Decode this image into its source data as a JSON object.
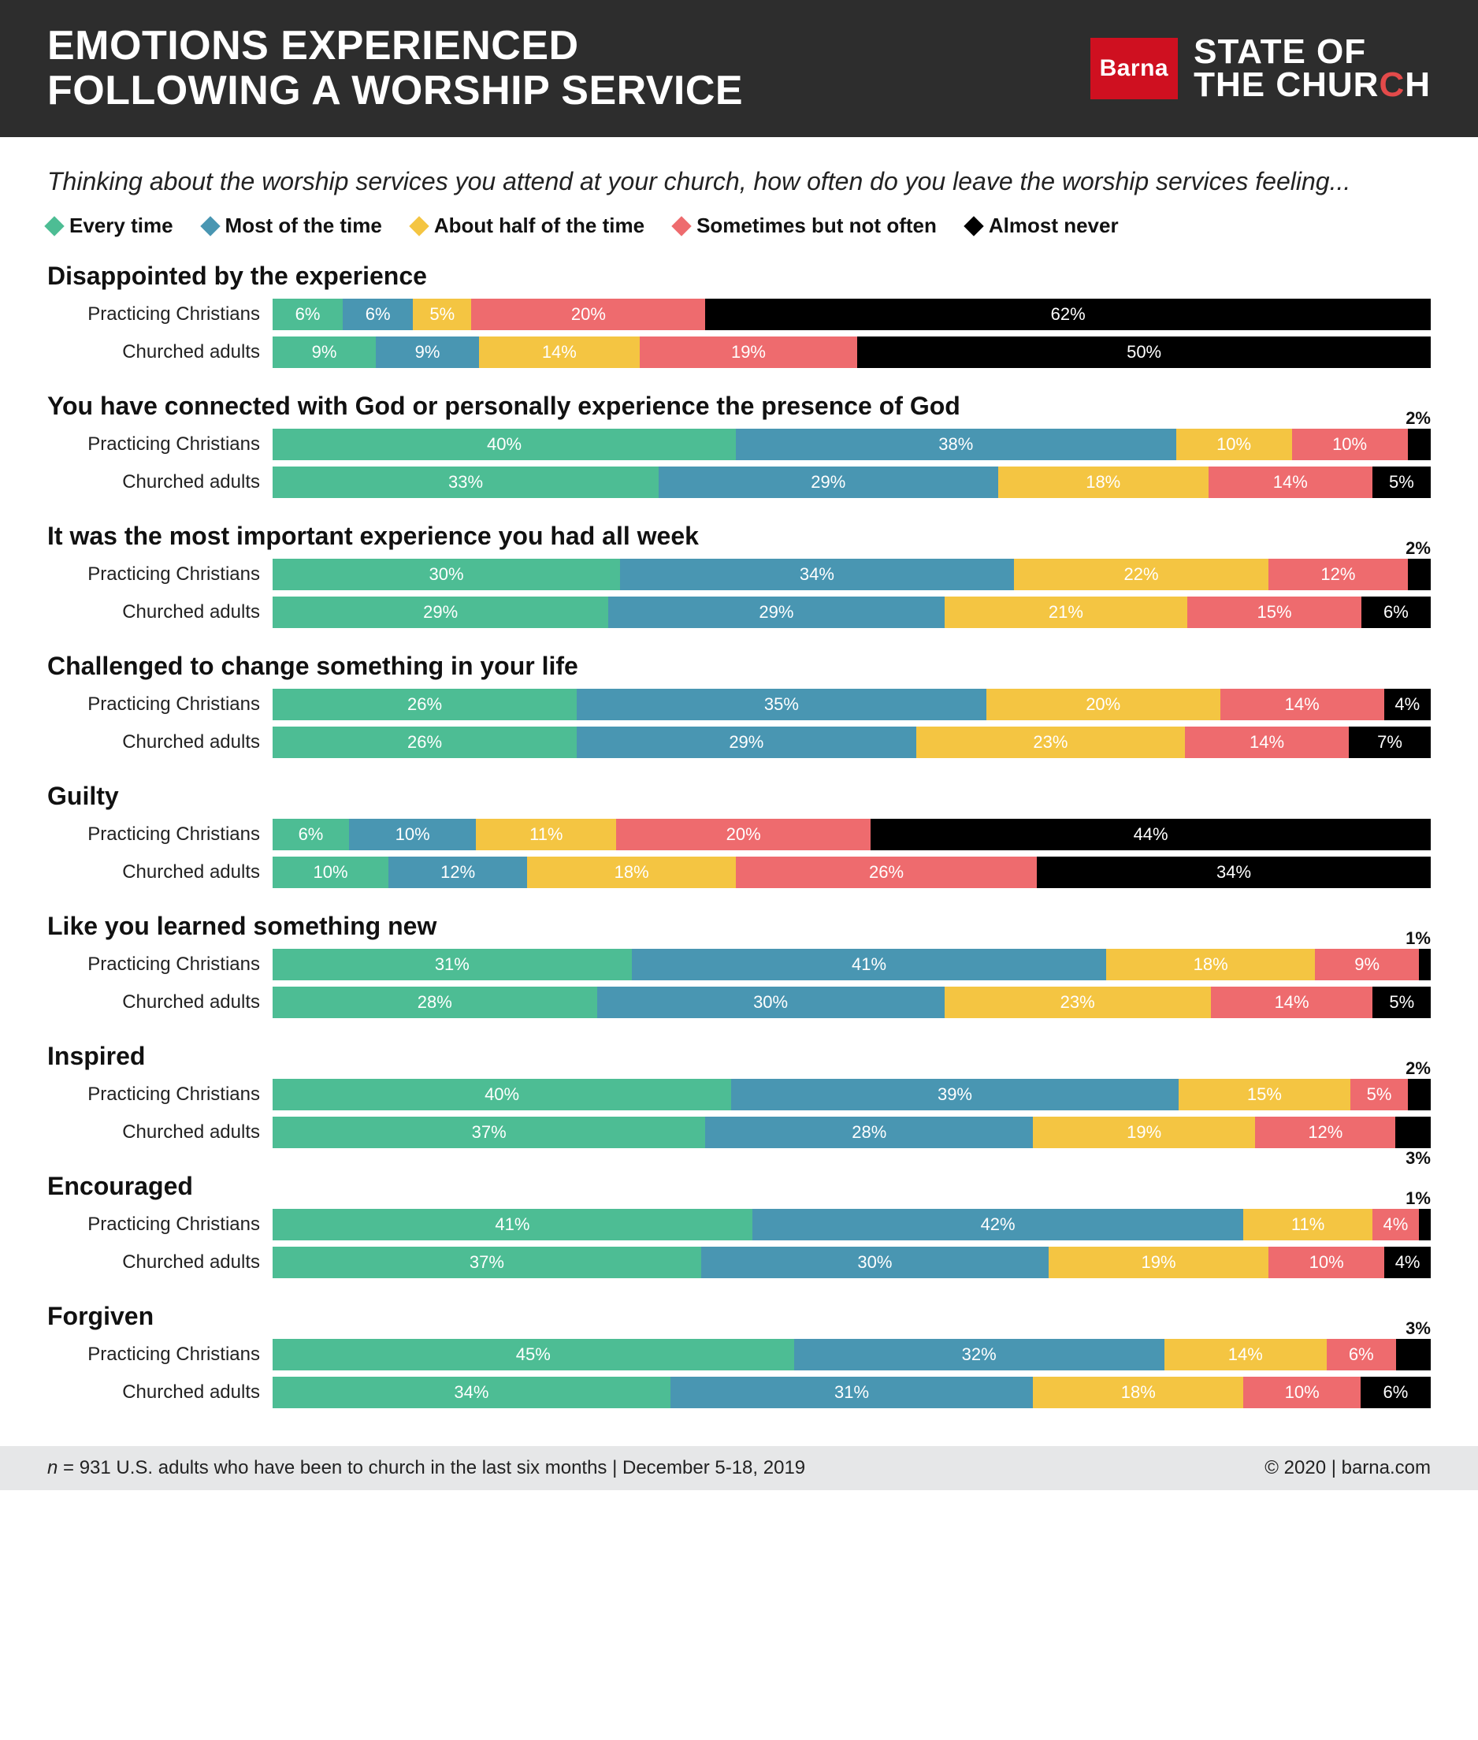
{
  "header": {
    "title_line1": "EMOTIONS EXPERIENCED",
    "title_line2": "FOLLOWING A WORSHIP SERVICE",
    "barna": "Barna",
    "soc_line1": "STATE OF",
    "soc_line2_pre": "THE CHUR",
    "soc_line2_c": "C",
    "soc_line2_post": "H"
  },
  "prompt": "Thinking about the worship services you attend at your church, how often do you leave the worship services feeling...",
  "legend": [
    {
      "label": "Every time",
      "color": "#4dbd94"
    },
    {
      "label": "Most of the time",
      "color": "#4996b2"
    },
    {
      "label": "About half of the time",
      "color": "#f4c542"
    },
    {
      "label": "Sometimes but not often",
      "color": "#ee6b6e"
    },
    {
      "label": "Almost never",
      "color": "#000000"
    }
  ],
  "colors": [
    "#4dbd94",
    "#4996b2",
    "#f4c542",
    "#ee6b6e",
    "#000000"
  ],
  "row_labels": [
    "Practicing Christians",
    "Churched adults"
  ],
  "overflow_threshold": 3,
  "groups": [
    {
      "title": "Disappointed by the experience",
      "rows": [
        {
          "values": [
            6,
            6,
            5,
            20,
            62
          ],
          "total_scale": 99
        },
        {
          "values": [
            9,
            9,
            14,
            19,
            50
          ],
          "total_scale": 101
        }
      ]
    },
    {
      "title": "You have connected with God or personally experience the presence of God",
      "rows": [
        {
          "values": [
            40,
            38,
            10,
            10,
            2
          ],
          "overflow": [
            {
              "i": 4,
              "pos": "above"
            }
          ]
        },
        {
          "values": [
            33,
            29,
            18,
            14,
            5
          ]
        }
      ]
    },
    {
      "title": "It was the most important experience you had all week",
      "rows": [
        {
          "values": [
            30,
            34,
            22,
            12,
            2
          ],
          "overflow": [
            {
              "i": 4,
              "pos": "above"
            }
          ]
        },
        {
          "values": [
            29,
            29,
            21,
            15,
            6
          ]
        }
      ]
    },
    {
      "title": "Challenged to change something in your life",
      "rows": [
        {
          "values": [
            26,
            35,
            20,
            14,
            4
          ]
        },
        {
          "values": [
            26,
            29,
            23,
            14,
            7
          ]
        }
      ]
    },
    {
      "title": "Guilty",
      "rows": [
        {
          "values": [
            6,
            10,
            11,
            20,
            44
          ],
          "total_scale": 91
        },
        {
          "values": [
            10,
            12,
            18,
            26,
            34
          ]
        }
      ]
    },
    {
      "title": "Like you learned something new",
      "rows": [
        {
          "values": [
            31,
            41,
            18,
            9,
            1
          ],
          "overflow": [
            {
              "i": 4,
              "pos": "above"
            }
          ]
        },
        {
          "values": [
            28,
            30,
            23,
            14,
            5
          ]
        }
      ]
    },
    {
      "title": "Inspired",
      "rows": [
        {
          "values": [
            40,
            39,
            15,
            5,
            2
          ],
          "overflow": [
            {
              "i": 4,
              "pos": "above"
            }
          ]
        },
        {
          "values": [
            37,
            28,
            19,
            12,
            3
          ],
          "overflow": [
            {
              "i": 4,
              "pos": "below"
            }
          ],
          "total_scale": 99
        }
      ]
    },
    {
      "title": "Encouraged",
      "rows": [
        {
          "values": [
            41,
            42,
            11,
            4,
            1
          ],
          "overflow": [
            {
              "i": 4,
              "pos": "above"
            }
          ],
          "total_scale": 99
        },
        {
          "values": [
            37,
            30,
            19,
            10,
            4
          ]
        }
      ]
    },
    {
      "title": "Forgiven",
      "rows": [
        {
          "values": [
            45,
            32,
            14,
            6,
            3
          ],
          "overflow": [
            {
              "i": 4,
              "pos": "above"
            }
          ]
        },
        {
          "values": [
            34,
            31,
            18,
            10,
            6
          ],
          "total_scale": 99
        }
      ]
    }
  ],
  "footer": {
    "left_pre": "n",
    "left_post": " = 931 U.S. adults who have been to church in the last six months | December 5-18, 2019",
    "right": "© 2020 | barna.com"
  }
}
